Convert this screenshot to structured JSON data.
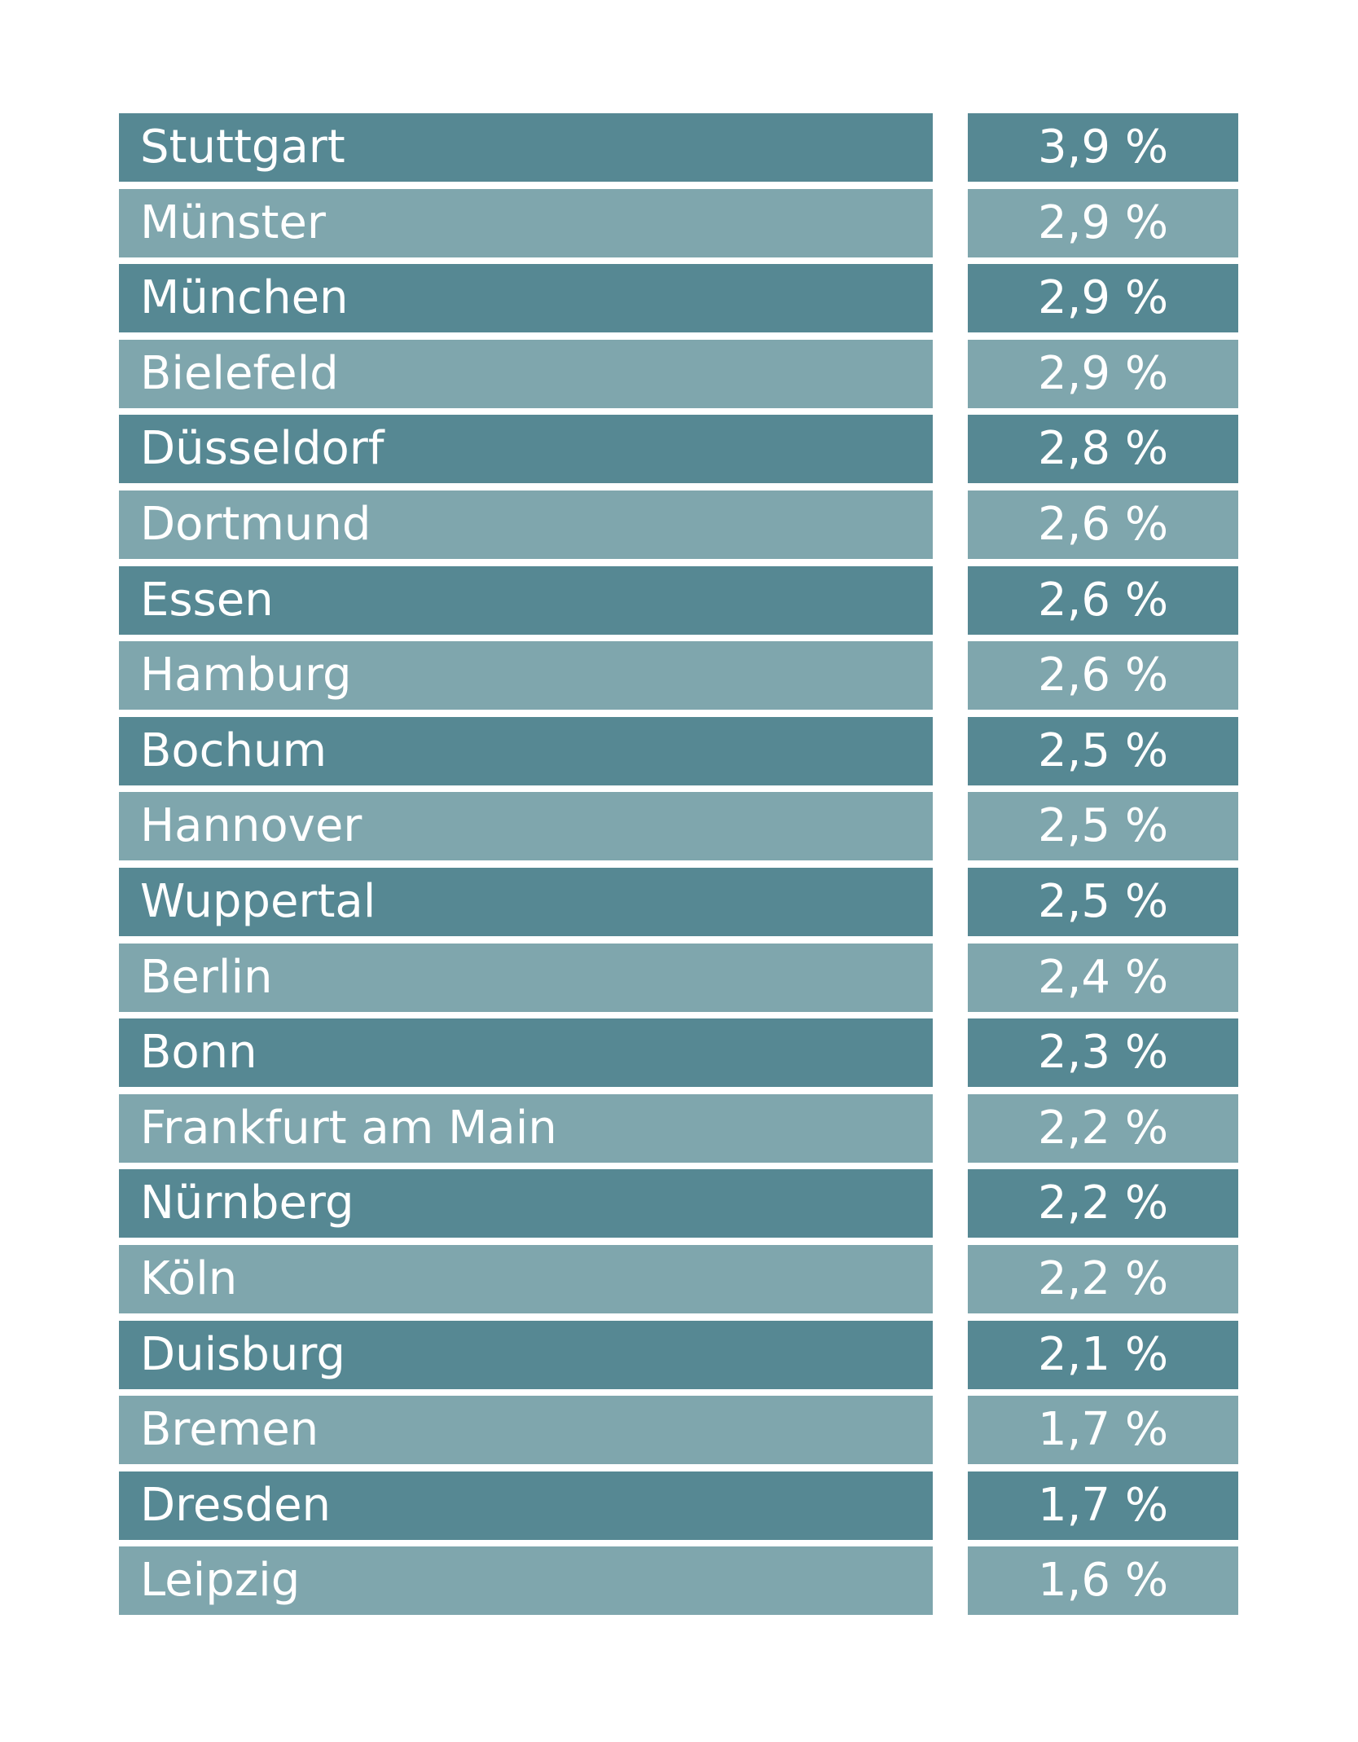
{
  "table": {
    "rows": [
      [
        "Stuttgart",
        "3,9 %"
      ],
      [
        "Münster",
        "2,9 %"
      ],
      [
        "München",
        "2,9 %"
      ],
      [
        "Bielefeld",
        "2,9 %"
      ],
      [
        "Düsseldorf",
        "2,8 %"
      ],
      [
        "Dortmund",
        "2,6 %"
      ],
      [
        "Essen",
        "2,6 %"
      ],
      [
        "Hamburg",
        "2,6 %"
      ],
      [
        "Bochum",
        "2,5 %"
      ],
      [
        "Hannover",
        "2,5 %"
      ],
      [
        "Wuppertal",
        "2,5 %"
      ],
      [
        "Berlin",
        "2,4 %"
      ],
      [
        "Bonn",
        "2,3 %"
      ],
      [
        "Frankfurt am Main",
        "2,2 %"
      ],
      [
        "Nürnberg",
        "2,2 %"
      ],
      [
        "Köln",
        "2,2 %"
      ],
      [
        "Duisburg",
        "2,1 %"
      ],
      [
        "Bremen",
        "1,7 %"
      ],
      [
        "Dresden",
        "1,7 %"
      ],
      [
        "Leipzig",
        "1,6 %"
      ]
    ]
  }
}
